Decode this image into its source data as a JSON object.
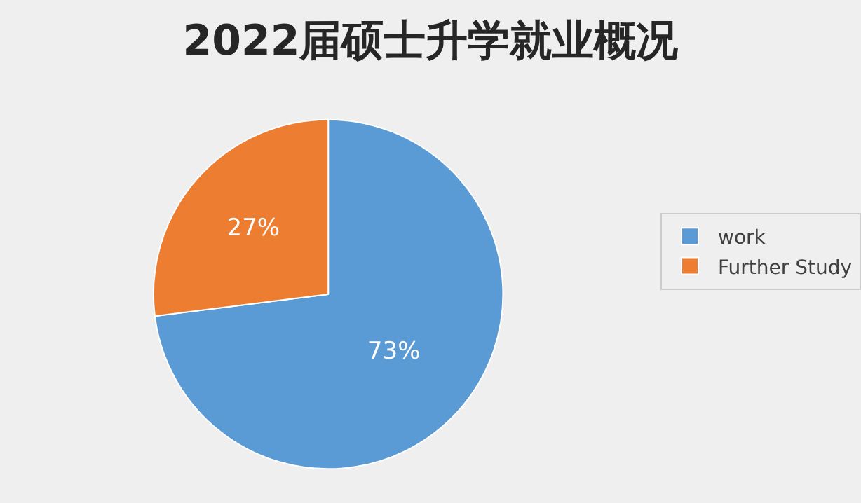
{
  "chart_data": {
    "type": "pie",
    "title": "2022届硕士升学就业概况",
    "categories": [
      "work",
      "Further Study"
    ],
    "values": [
      73,
      27
    ],
    "colors": [
      "#5b9bd5",
      "#ed7d31"
    ],
    "value_labels": [
      "73%",
      "27%"
    ],
    "legend": "right"
  }
}
